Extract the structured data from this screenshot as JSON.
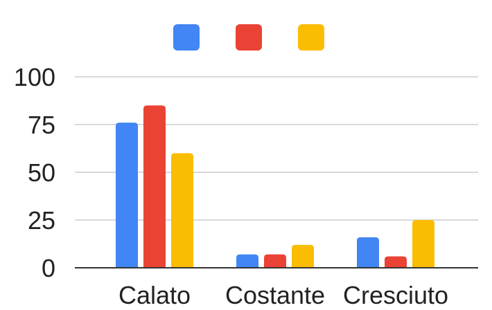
{
  "chart_data": {
    "type": "bar",
    "title": "",
    "xlabel": "",
    "ylabel": "",
    "categories": [
      "Calato",
      "Costante",
      "Cresciuto"
    ],
    "series": [
      {
        "color": "#4285F4",
        "values": [
          76,
          7,
          16
        ]
      },
      {
        "color": "#EA4335",
        "values": [
          85,
          7,
          6
        ]
      },
      {
        "color": "#FBBC04",
        "values": [
          60,
          12,
          25
        ]
      }
    ],
    "ylim": [
      0,
      100
    ],
    "yticks": [
      "0",
      "25",
      "50",
      "75",
      "100"
    ],
    "grid": true,
    "legend_position": "top",
    "gridline_color": "#cccccc",
    "axis_color": "#333333"
  }
}
